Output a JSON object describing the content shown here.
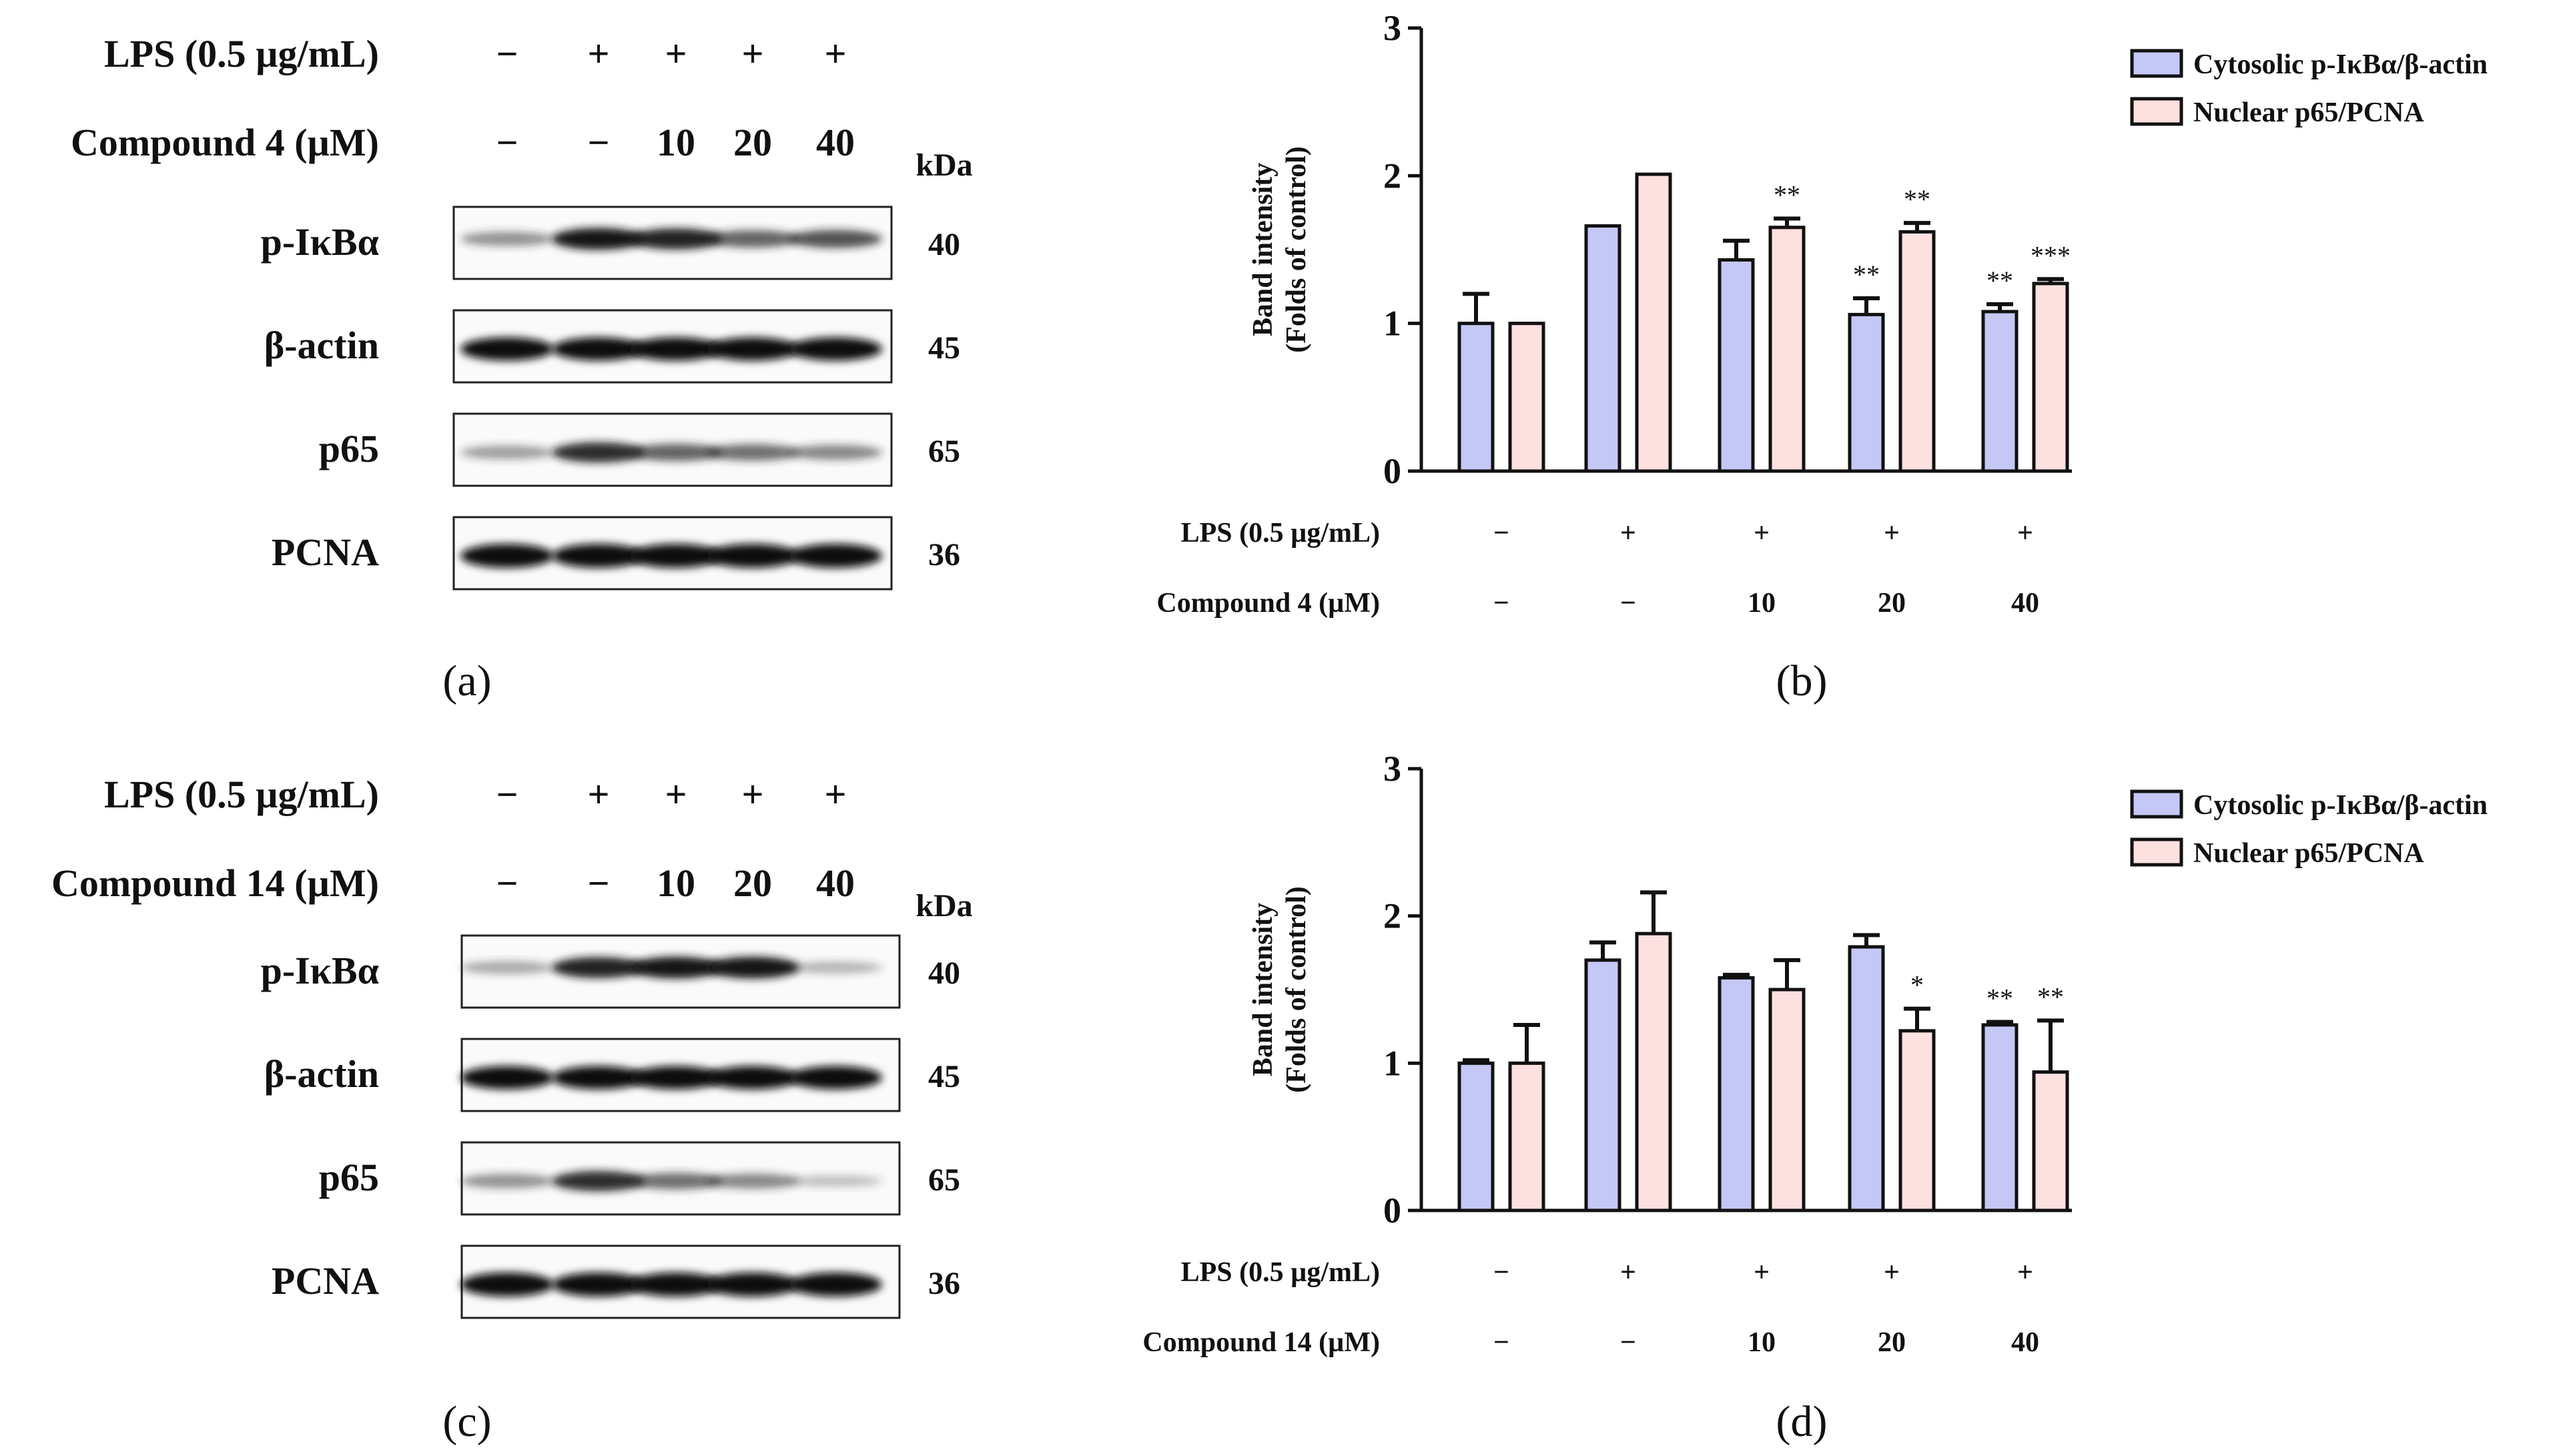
{
  "panel_labels": [
    "(a)",
    "(b)",
    "(c)",
    "(d)"
  ],
  "blots": [
    {
      "lps_label": "LPS (0.5 µg/mL)",
      "compound_label": "Compound 4 (µM)",
      "lps_lanes": [
        "−",
        "+",
        "+",
        "+",
        "+"
      ],
      "compound_lanes": [
        "−",
        "−",
        "10",
        "20",
        "40"
      ],
      "kda_label": "kDa",
      "proteins": [
        {
          "name": "p-IκBα",
          "kda": "40",
          "intensity": [
            0.35,
            0.85,
            0.8,
            0.55,
            0.6
          ]
        },
        {
          "name": "β-actin",
          "kda": "45",
          "intensity": [
            0.95,
            0.95,
            0.95,
            0.95,
            0.95
          ]
        },
        {
          "name": "p65",
          "kda": "65",
          "intensity": [
            0.3,
            0.75,
            0.55,
            0.5,
            0.4
          ]
        },
        {
          "name": "PCNA",
          "kda": "36",
          "intensity": [
            1.0,
            1.0,
            1.0,
            1.0,
            1.0
          ]
        }
      ]
    },
    {
      "lps_label": "LPS (0.5 µg/mL)",
      "compound_label": "Compound 14 (µM)",
      "lps_lanes": [
        "−",
        "+",
        "+",
        "+",
        "+"
      ],
      "compound_lanes": [
        "−",
        "−",
        "10",
        "20",
        "40"
      ],
      "kda_label": "kDa",
      "proteins": [
        {
          "name": "p-IκBα",
          "kda": "40",
          "intensity": [
            0.25,
            0.8,
            0.85,
            0.85,
            0.2
          ]
        },
        {
          "name": "β-actin",
          "kda": "45",
          "intensity": [
            0.95,
            0.95,
            0.95,
            0.95,
            0.95
          ]
        },
        {
          "name": "p65",
          "kda": "65",
          "intensity": [
            0.35,
            0.75,
            0.5,
            0.4,
            0.15
          ]
        },
        {
          "name": "PCNA",
          "kda": "36",
          "intensity": [
            1.0,
            1.0,
            1.0,
            1.0,
            1.0
          ]
        }
      ]
    }
  ],
  "chart_data": [
    {
      "type": "bar",
      "title": "",
      "xlabel": "",
      "ylabel": "Band intensity (Folds of control)",
      "ylabel_lines": [
        "Band intensity",
        "(Folds of control)"
      ],
      "yticks": [
        "0",
        "1",
        "2",
        "3"
      ],
      "ylim": [
        0,
        3
      ],
      "condition_rows": [
        {
          "label": "LPS (0.5 µg/mL)",
          "values": [
            "−",
            "+",
            "+",
            "+",
            "+"
          ]
        },
        {
          "label": "Compound 4 (µM)",
          "values": [
            "−",
            "−",
            "10",
            "20",
            "40"
          ]
        }
      ],
      "legend_position": "top-right",
      "series": [
        {
          "name": "Cytosolic p-IκBα/β-actin",
          "color": "#c5c8f5",
          "values": [
            1.0,
            1.66,
            1.43,
            1.06,
            1.08
          ],
          "errors": [
            0.2,
            0.0,
            0.13,
            0.11,
            0.05
          ],
          "sig": [
            "",
            "",
            "",
            "**",
            "**"
          ]
        },
        {
          "name": "Nuclear p65/PCNA",
          "color": "#fde0e0",
          "values": [
            1.0,
            2.01,
            1.65,
            1.62,
            1.27
          ],
          "errors": [
            0.0,
            0.0,
            0.06,
            0.06,
            0.03
          ],
          "sig": [
            "",
            "",
            "**",
            "**",
            "***"
          ]
        }
      ]
    },
    {
      "type": "bar",
      "title": "",
      "xlabel": "",
      "ylabel": "Band intensity (Folds of control)",
      "ylabel_lines": [
        "Band intensity",
        "(Folds of control)"
      ],
      "yticks": [
        "0",
        "1",
        "2",
        "3"
      ],
      "ylim": [
        0,
        3
      ],
      "condition_rows": [
        {
          "label": "LPS (0.5 µg/mL)",
          "values": [
            "−",
            "+",
            "+",
            "+",
            "+"
          ]
        },
        {
          "label": "Compound 14 (µM)",
          "values": [
            "−",
            "−",
            "10",
            "20",
            "40"
          ]
        }
      ],
      "legend_position": "top-right",
      "series": [
        {
          "name": "Cytosolic p-IκBα/β-actin",
          "color": "#c5c8f5",
          "values": [
            1.0,
            1.7,
            1.58,
            1.79,
            1.26
          ],
          "errors": [
            0.02,
            0.12,
            0.02,
            0.08,
            0.02
          ],
          "sig": [
            "",
            "",
            "",
            "",
            "**"
          ]
        },
        {
          "name": "Nuclear p65/PCNA",
          "color": "#fde0e0",
          "values": [
            1.0,
            1.88,
            1.5,
            1.22,
            0.94
          ],
          "errors": [
            0.26,
            0.28,
            0.2,
            0.15,
            0.35
          ],
          "sig": [
            "",
            "",
            "",
            "*",
            "**"
          ]
        }
      ]
    }
  ]
}
